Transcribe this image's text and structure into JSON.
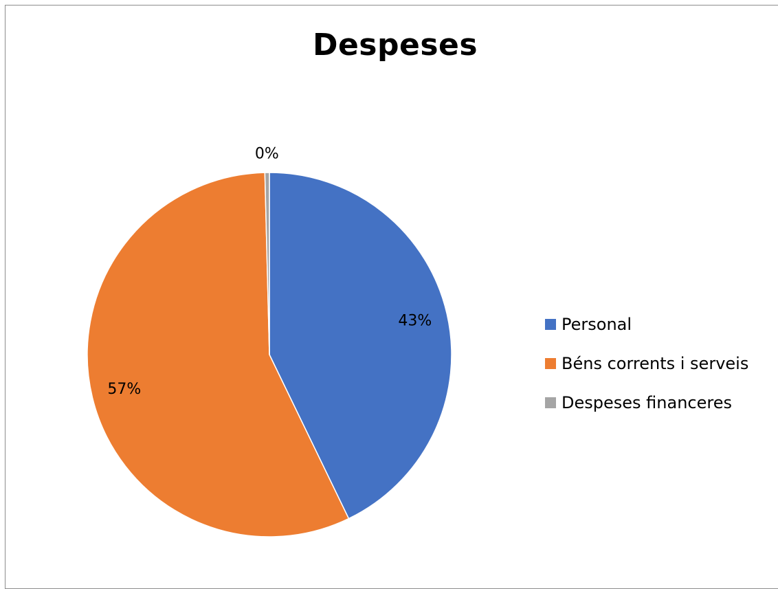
{
  "chart_data": {
    "type": "pie",
    "title": "Despeses",
    "categories": [
      "Personal",
      "Béns corrents i serveis",
      "Despeses financeres"
    ],
    "values": [
      43,
      57,
      0.4
    ],
    "data_labels": [
      "43%",
      "57%",
      "0%"
    ],
    "colors": [
      "#4472C4",
      "#ED7D31",
      "#A5A5A5"
    ],
    "legend_position": "right"
  }
}
